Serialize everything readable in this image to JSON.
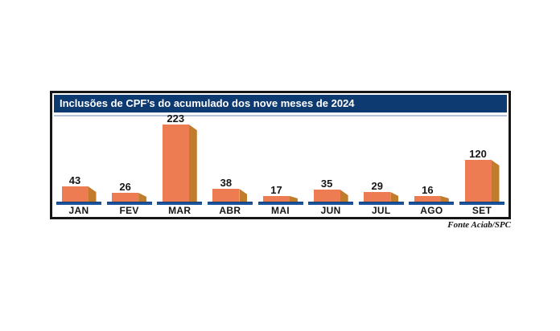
{
  "panel": {
    "title": "Inclusões de CPF’s do acumulado dos nove meses de 2024",
    "source": "Fonte Aciab/SPC"
  },
  "chart_data": {
    "type": "bar",
    "title": "Inclusões de CPF’s do acumulado dos nove meses de 2024",
    "categories": [
      "JAN",
      "FEV",
      "MAR",
      "ABR",
      "MAI",
      "JUN",
      "JUL",
      "AGO",
      "SET"
    ],
    "values": [
      43,
      26,
      223,
      38,
      17,
      35,
      29,
      16,
      120
    ],
    "xlabel": "",
    "ylabel": "",
    "ylim": [
      0,
      223
    ],
    "grid": false,
    "legend": false,
    "data_labels": true,
    "source": "Fonte Aciab/SPC",
    "colors": {
      "bar_front": "#ee7c52",
      "bar_side": "#c07b2b",
      "pedestal": "#1b549c",
      "pedestal_edge": "#123c72",
      "title_bg": "#0d3a70",
      "title_text": "#ffffff",
      "title_underline": "#b6c4d9",
      "panel_border": "#161616",
      "label_text": "#161616"
    }
  }
}
